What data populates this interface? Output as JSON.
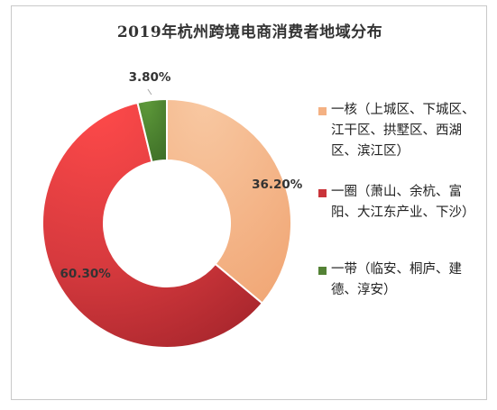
{
  "chart_data": {
    "type": "pie",
    "variant": "donut",
    "title": "2019年杭州跨境电商消费者地域分布",
    "slices": [
      {
        "label": "一核（上城区、下城区、江干区、拱墅区、西湖区、滨江区）",
        "value": 36.2,
        "value_label": "36.20%",
        "color": "#F4B183"
      },
      {
        "label": "一圈（萧山、余杭、富阳、大江东产业、下沙）",
        "value": 60.3,
        "value_label": "60.30%",
        "color": "#C9343A"
      },
      {
        "label": "一带（临安、桐庐、建德、淳安）",
        "value": 3.8,
        "value_label": "3.80%",
        "color": "#548235"
      }
    ],
    "legend_position": "right"
  }
}
